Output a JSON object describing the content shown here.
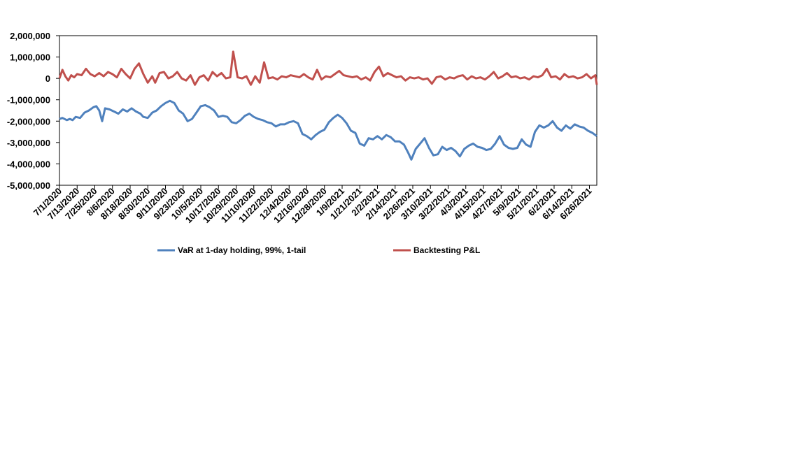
{
  "chart_data": {
    "type": "line",
    "title": "",
    "xlabel": "",
    "ylabel": "",
    "ylim": [
      -5000000,
      2000000
    ],
    "grid": false,
    "legend_position": "bottom",
    "y_ticks": [
      "2,000,000",
      "1,000,000",
      "0",
      "-1,000,000",
      "-2,000,000",
      "-3,000,000",
      "-4,000,000",
      "-5,000,000"
    ],
    "y_tick_values": [
      2000000,
      1000000,
      0,
      -1000000,
      -2000000,
      -3000000,
      -4000000,
      -5000000
    ],
    "x_ticks": [
      "7/1/2020",
      "7/13/2020",
      "7/25/2020",
      "8/6/2020",
      "8/18/2020",
      "8/30/2020",
      "9/11/2020",
      "9/23/2020",
      "10/5/2020",
      "10/17/2020",
      "10/29/2020",
      "11/10/2020",
      "11/22/2020",
      "12/4/2020",
      "12/16/2020",
      "12/28/2020",
      "1/9/2021",
      "1/21/2021",
      "2/2/2021",
      "2/14/2021",
      "2/26/2021",
      "3/10/2021",
      "3/22/2021",
      "4/3/2021",
      "4/15/2021",
      "4/27/2021",
      "5/9/2021",
      "5/21/2021",
      "6/2/2021",
      "6/14/2021",
      "6/26/2021"
    ],
    "x_range": [
      "7/1/2020",
      "7/1/2021"
    ],
    "series": [
      {
        "name": "VaR at 1-day holding, 99%, 1-tail",
        "color": "#4F81BD",
        "points": [
          [
            "7/1/2020",
            -1900000
          ],
          [
            "7/3/2020",
            -1850000
          ],
          [
            "7/6/2020",
            -1950000
          ],
          [
            "7/8/2020",
            -1900000
          ],
          [
            "7/10/2020",
            -1950000
          ],
          [
            "7/12/2020",
            -1800000
          ],
          [
            "7/15/2020",
            -1850000
          ],
          [
            "7/18/2020",
            -1600000
          ],
          [
            "7/21/2020",
            -1500000
          ],
          [
            "7/24/2020",
            -1350000
          ],
          [
            "7/26/2020",
            -1300000
          ],
          [
            "7/28/2020",
            -1500000
          ],
          [
            "7/30/2020",
            -2000000
          ],
          [
            "8/1/2020",
            -1400000
          ],
          [
            "8/4/2020",
            -1450000
          ],
          [
            "8/7/2020",
            -1550000
          ],
          [
            "8/10/2020",
            -1650000
          ],
          [
            "8/13/2020",
            -1450000
          ],
          [
            "8/16/2020",
            -1550000
          ],
          [
            "8/19/2020",
            -1400000
          ],
          [
            "8/22/2020",
            -1550000
          ],
          [
            "8/25/2020",
            -1650000
          ],
          [
            "8/27/2020",
            -1800000
          ],
          [
            "8/30/2020",
            -1850000
          ],
          [
            "9/2/2020",
            -1600000
          ],
          [
            "9/5/2020",
            -1500000
          ],
          [
            "9/8/2020",
            -1300000
          ],
          [
            "9/11/2020",
            -1150000
          ],
          [
            "9/14/2020",
            -1050000
          ],
          [
            "9/17/2020",
            -1150000
          ],
          [
            "9/20/2020",
            -1500000
          ],
          [
            "9/23/2020",
            -1650000
          ],
          [
            "9/26/2020",
            -2000000
          ],
          [
            "9/29/2020",
            -1900000
          ],
          [
            "10/2/2020",
            -1600000
          ],
          [
            "10/5/2020",
            -1300000
          ],
          [
            "10/8/2020",
            -1250000
          ],
          [
            "10/11/2020",
            -1350000
          ],
          [
            "10/14/2020",
            -1500000
          ],
          [
            "10/17/2020",
            -1800000
          ],
          [
            "10/20/2020",
            -1750000
          ],
          [
            "10/23/2020",
            -1800000
          ],
          [
            "10/26/2020",
            -2050000
          ],
          [
            "10/29/2020",
            -2100000
          ],
          [
            "11/1/2020",
            -1950000
          ],
          [
            "11/4/2020",
            -1750000
          ],
          [
            "11/7/2020",
            -1650000
          ],
          [
            "11/10/2020",
            -1800000
          ],
          [
            "11/13/2020",
            -1900000
          ],
          [
            "11/16/2020",
            -1950000
          ],
          [
            "11/19/2020",
            -2050000
          ],
          [
            "11/22/2020",
            -2100000
          ],
          [
            "11/25/2020",
            -2250000
          ],
          [
            "11/28/2020",
            -2150000
          ],
          [
            "12/1/2020",
            -2150000
          ],
          [
            "12/4/2020",
            -2050000
          ],
          [
            "12/7/2020",
            -2000000
          ],
          [
            "12/10/2020",
            -2100000
          ],
          [
            "12/13/2020",
            -2600000
          ],
          [
            "12/16/2020",
            -2700000
          ],
          [
            "12/19/2020",
            -2850000
          ],
          [
            "12/22/2020",
            -2650000
          ],
          [
            "12/25/2020",
            -2500000
          ],
          [
            "12/28/2020",
            -2400000
          ],
          [
            "12/31/2020",
            -2050000
          ],
          [
            "1/3/2021",
            -1850000
          ],
          [
            "1/6/2021",
            -1700000
          ],
          [
            "1/9/2021",
            -1850000
          ],
          [
            "1/12/2021",
            -2100000
          ],
          [
            "1/15/2021",
            -2450000
          ],
          [
            "1/18/2021",
            -2550000
          ],
          [
            "1/21/2021",
            -3050000
          ],
          [
            "1/24/2021",
            -3150000
          ],
          [
            "1/27/2021",
            -2800000
          ],
          [
            "1/30/2021",
            -2850000
          ],
          [
            "2/2/2021",
            -2700000
          ],
          [
            "2/5/2021",
            -2850000
          ],
          [
            "2/8/2021",
            -2650000
          ],
          [
            "2/11/2021",
            -2750000
          ],
          [
            "2/14/2021",
            -2950000
          ],
          [
            "2/17/2021",
            -2950000
          ],
          [
            "2/20/2021",
            -3100000
          ],
          [
            "2/23/2021",
            -3500000
          ],
          [
            "2/25/2021",
            -3800000
          ],
          [
            "2/28/2021",
            -3300000
          ],
          [
            "3/3/2021",
            -3050000
          ],
          [
            "3/6/2021",
            -2800000
          ],
          [
            "3/9/2021",
            -3250000
          ],
          [
            "3/12/2021",
            -3600000
          ],
          [
            "3/15/2021",
            -3550000
          ],
          [
            "3/18/2021",
            -3200000
          ],
          [
            "3/21/2021",
            -3350000
          ],
          [
            "3/24/2021",
            -3250000
          ],
          [
            "3/27/2021",
            -3400000
          ],
          [
            "3/30/2021",
            -3650000
          ],
          [
            "4/2/2021",
            -3300000
          ],
          [
            "4/5/2021",
            -3150000
          ],
          [
            "4/8/2021",
            -3050000
          ],
          [
            "4/11/2021",
            -3200000
          ],
          [
            "4/14/2021",
            -3250000
          ],
          [
            "4/17/2021",
            -3350000
          ],
          [
            "4/20/2021",
            -3300000
          ],
          [
            "4/23/2021",
            -3050000
          ],
          [
            "4/26/2021",
            -2700000
          ],
          [
            "4/29/2021",
            -3100000
          ],
          [
            "5/2/2021",
            -3250000
          ],
          [
            "5/5/2021",
            -3300000
          ],
          [
            "5/8/2021",
            -3250000
          ],
          [
            "5/11/2021",
            -2850000
          ],
          [
            "5/14/2021",
            -3100000
          ],
          [
            "5/17/2021",
            -3200000
          ],
          [
            "5/20/2021",
            -2500000
          ],
          [
            "5/23/2021",
            -2200000
          ],
          [
            "5/26/2021",
            -2300000
          ],
          [
            "5/29/2021",
            -2200000
          ],
          [
            "6/1/2021",
            -2000000
          ],
          [
            "6/4/2021",
            -2300000
          ],
          [
            "6/7/2021",
            -2450000
          ],
          [
            "6/10/2021",
            -2200000
          ],
          [
            "6/13/2021",
            -2350000
          ],
          [
            "6/16/2021",
            -2150000
          ],
          [
            "6/19/2021",
            -2250000
          ],
          [
            "6/22/2021",
            -2300000
          ],
          [
            "6/25/2021",
            -2450000
          ],
          [
            "6/28/2021",
            -2550000
          ],
          [
            "7/1/2021",
            -2700000
          ]
        ]
      },
      {
        "name": "Backtesting P&L",
        "color": "#C0504D",
        "points": [
          [
            "7/1/2020",
            0
          ],
          [
            "7/3/2020",
            400000
          ],
          [
            "7/5/2020",
            100000
          ],
          [
            "7/7/2020",
            -100000
          ],
          [
            "7/9/2020",
            150000
          ],
          [
            "7/11/2020",
            50000
          ],
          [
            "7/13/2020",
            200000
          ],
          [
            "7/16/2020",
            150000
          ],
          [
            "7/19/2020",
            450000
          ],
          [
            "7/22/2020",
            200000
          ],
          [
            "7/25/2020",
            100000
          ],
          [
            "7/28/2020",
            250000
          ],
          [
            "7/31/2020",
            100000
          ],
          [
            "8/3/2020",
            300000
          ],
          [
            "8/6/2020",
            200000
          ],
          [
            "8/9/2020",
            50000
          ],
          [
            "8/12/2020",
            450000
          ],
          [
            "8/15/2020",
            200000
          ],
          [
            "8/18/2020",
            0
          ],
          [
            "8/21/2020",
            450000
          ],
          [
            "8/24/2020",
            700000
          ],
          [
            "8/27/2020",
            200000
          ],
          [
            "8/30/2020",
            -200000
          ],
          [
            "9/2/2020",
            100000
          ],
          [
            "9/4/2020",
            -200000
          ],
          [
            "9/7/2020",
            250000
          ],
          [
            "9/10/2020",
            300000
          ],
          [
            "9/13/2020",
            0
          ],
          [
            "9/16/2020",
            100000
          ],
          [
            "9/19/2020",
            300000
          ],
          [
            "9/22/2020",
            0
          ],
          [
            "9/25/2020",
            -100000
          ],
          [
            "9/28/2020",
            150000
          ],
          [
            "10/1/2020",
            -300000
          ],
          [
            "10/4/2020",
            50000
          ],
          [
            "10/7/2020",
            150000
          ],
          [
            "10/10/2020",
            -100000
          ],
          [
            "10/13/2020",
            300000
          ],
          [
            "10/16/2020",
            100000
          ],
          [
            "10/19/2020",
            250000
          ],
          [
            "10/22/2020",
            0
          ],
          [
            "10/25/2020",
            50000
          ],
          [
            "10/27/2020",
            1250000
          ],
          [
            "10/30/2020",
            50000
          ],
          [
            "11/2/2020",
            0
          ],
          [
            "11/5/2020",
            100000
          ],
          [
            "11/8/2020",
            -300000
          ],
          [
            "11/11/2020",
            100000
          ],
          [
            "11/14/2020",
            -200000
          ],
          [
            "11/17/2020",
            750000
          ],
          [
            "11/20/2020",
            0
          ],
          [
            "11/23/2020",
            50000
          ],
          [
            "11/26/2020",
            -50000
          ],
          [
            "11/29/2020",
            100000
          ],
          [
            "12/2/2020",
            50000
          ],
          [
            "12/5/2020",
            150000
          ],
          [
            "12/8/2020",
            100000
          ],
          [
            "12/11/2020",
            50000
          ],
          [
            "12/14/2020",
            200000
          ],
          [
            "12/17/2020",
            50000
          ],
          [
            "12/20/2020",
            -50000
          ],
          [
            "12/23/2020",
            400000
          ],
          [
            "12/26/2020",
            -50000
          ],
          [
            "12/29/2020",
            100000
          ],
          [
            "1/1/2021",
            50000
          ],
          [
            "1/4/2021",
            200000
          ],
          [
            "1/7/2021",
            350000
          ],
          [
            "1/10/2021",
            150000
          ],
          [
            "1/13/2021",
            100000
          ],
          [
            "1/16/2021",
            50000
          ],
          [
            "1/19/2021",
            100000
          ],
          [
            "1/22/2021",
            -50000
          ],
          [
            "1/25/2021",
            50000
          ],
          [
            "1/28/2021",
            -100000
          ],
          [
            "1/31/2021",
            300000
          ],
          [
            "2/3/2021",
            550000
          ],
          [
            "2/6/2021",
            100000
          ],
          [
            "2/9/2021",
            250000
          ],
          [
            "2/12/2021",
            150000
          ],
          [
            "2/15/2021",
            50000
          ],
          [
            "2/18/2021",
            100000
          ],
          [
            "2/21/2021",
            -100000
          ],
          [
            "2/24/2021",
            50000
          ],
          [
            "2/27/2021",
            0
          ],
          [
            "3/2/2021",
            50000
          ],
          [
            "3/5/2021",
            -50000
          ],
          [
            "3/8/2021",
            0
          ],
          [
            "3/11/2021",
            -250000
          ],
          [
            "3/14/2021",
            50000
          ],
          [
            "3/17/2021",
            100000
          ],
          [
            "3/20/2021",
            -50000
          ],
          [
            "3/23/2021",
            50000
          ],
          [
            "3/26/2021",
            0
          ],
          [
            "3/29/2021",
            100000
          ],
          [
            "4/1/2021",
            150000
          ],
          [
            "4/4/2021",
            -50000
          ],
          [
            "4/7/2021",
            100000
          ],
          [
            "4/10/2021",
            0
          ],
          [
            "4/13/2021",
            50000
          ],
          [
            "4/16/2021",
            -50000
          ],
          [
            "4/19/2021",
            100000
          ],
          [
            "4/22/2021",
            300000
          ],
          [
            "4/25/2021",
            0
          ],
          [
            "4/28/2021",
            100000
          ],
          [
            "5/1/2021",
            250000
          ],
          [
            "5/4/2021",
            50000
          ],
          [
            "5/7/2021",
            100000
          ],
          [
            "5/10/2021",
            0
          ],
          [
            "5/13/2021",
            50000
          ],
          [
            "5/16/2021",
            -50000
          ],
          [
            "5/19/2021",
            100000
          ],
          [
            "5/22/2021",
            50000
          ],
          [
            "5/25/2021",
            150000
          ],
          [
            "5/28/2021",
            450000
          ],
          [
            "5/31/2021",
            50000
          ],
          [
            "6/3/2021",
            100000
          ],
          [
            "6/6/2021",
            -50000
          ],
          [
            "6/9/2021",
            200000
          ],
          [
            "6/12/2021",
            50000
          ],
          [
            "6/15/2021",
            100000
          ],
          [
            "6/18/2021",
            0
          ],
          [
            "6/21/2021",
            50000
          ],
          [
            "6/24/2021",
            200000
          ],
          [
            "6/27/2021",
            0
          ],
          [
            "6/30/2021",
            150000
          ],
          [
            "7/1/2021",
            -300000
          ]
        ]
      }
    ]
  }
}
